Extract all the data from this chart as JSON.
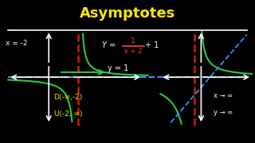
{
  "title": "Asymptotes",
  "title_color": "#FFE800",
  "bg_color": "#000000",
  "label_x_eq": "x = -2",
  "label_y_eq": "y = 1",
  "label_domain1": "D(-∞,-2)",
  "label_domain2": "U(-2, ∞)",
  "label_xarrow": "x → ∞",
  "label_yarrow": "y → ∞",
  "green": "#22CC44",
  "red_asym": "#CC2200",
  "blue_dash": "#4488FF",
  "white": "#FFFFFF",
  "yellow": "#FFE800",
  "red_formula": "#FF4444"
}
